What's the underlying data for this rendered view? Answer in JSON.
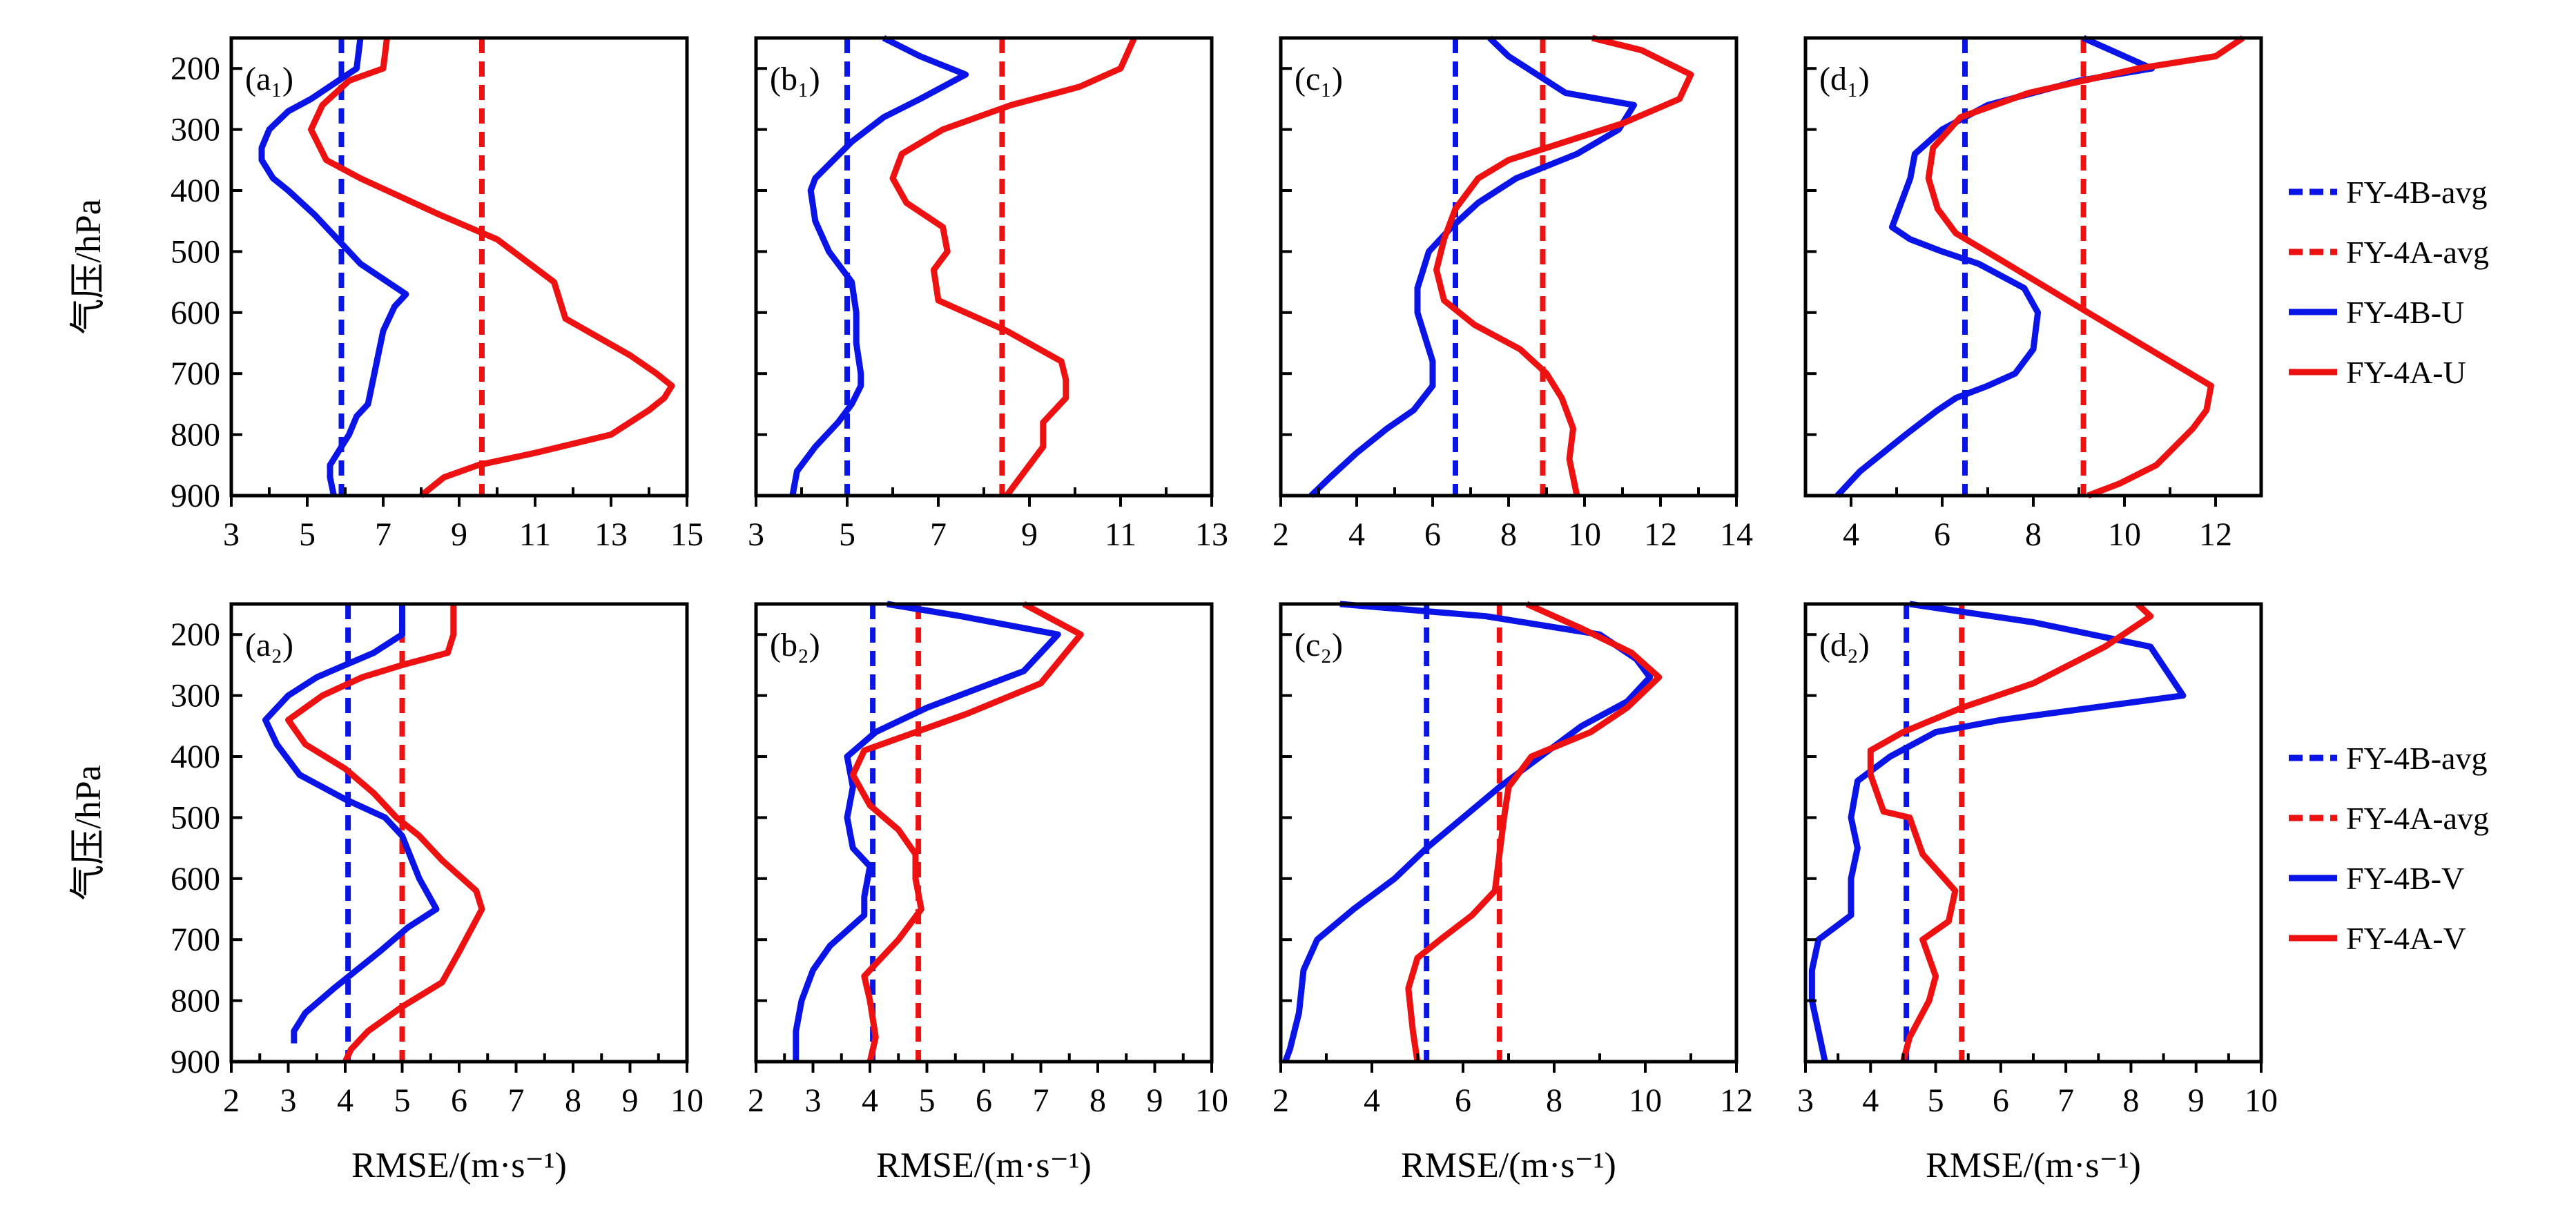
{
  "colors": {
    "fy4b": "#0a14e6",
    "fy4a": "#ee1111"
  },
  "y_axis_label": "气压/hPa",
  "x_axis_label": "RMSE/(m·s⁻¹)",
  "chart_data": [
    {
      "type": "line",
      "panel": "(a₁)",
      "component": "U",
      "ylim": [
        150,
        900
      ],
      "y_ticks": [
        200,
        300,
        400,
        500,
        600,
        700,
        800,
        900
      ],
      "xlim": [
        3,
        15
      ],
      "x_ticks": [
        3,
        5,
        7,
        9,
        11,
        13,
        15
      ],
      "series": [
        {
          "name": "FY-4B-avg",
          "dashed": true,
          "x": [
            5.9,
            5.9
          ],
          "y": [
            150,
            900
          ]
        },
        {
          "name": "FY-4A-avg",
          "dashed": true,
          "x": [
            9.6,
            9.6
          ],
          "y": [
            150,
            900
          ]
        },
        {
          "name": "FY-4B-U",
          "x": [
            6.4,
            6.3,
            5.1,
            4.5,
            4.0,
            3.8,
            3.8,
            4.1,
            4.5,
            5.2,
            5.8,
            6.4,
            7.6,
            7.3,
            7.0,
            6.8,
            6.6,
            6.3,
            6.1,
            5.8,
            5.6,
            5.6,
            5.7
          ],
          "y": [
            150,
            200,
            250,
            270,
            300,
            330,
            350,
            380,
            400,
            440,
            480,
            520,
            570,
            590,
            630,
            690,
            750,
            770,
            800,
            830,
            850,
            870,
            900
          ]
        },
        {
          "name": "FY-4A-U",
          "x": [
            7.1,
            7.0,
            6.1,
            5.4,
            5.1,
            5.5,
            6.4,
            8.5,
            10.0,
            11.5,
            11.8,
            13.5,
            14.2,
            14.6,
            14.4,
            14.0,
            13.0,
            11.0,
            9.5,
            8.6,
            8.0
          ],
          "y": [
            150,
            200,
            220,
            260,
            300,
            350,
            380,
            440,
            480,
            550,
            610,
            670,
            700,
            720,
            740,
            760,
            800,
            830,
            850,
            870,
            900
          ]
        }
      ]
    },
    {
      "type": "line",
      "panel": "(b₁)",
      "component": "U",
      "ylim": [
        150,
        900
      ],
      "y_ticks": [
        200,
        300,
        400,
        500,
        600,
        700,
        800,
        900
      ],
      "xlim": [
        3,
        13
      ],
      "x_ticks": [
        3,
        5,
        7,
        9,
        11,
        13
      ],
      "series": [
        {
          "name": "FY-4B-avg",
          "dashed": true,
          "x": [
            5.0,
            5.0
          ],
          "y": [
            150,
            900
          ]
        },
        {
          "name": "FY-4A-avg",
          "dashed": true,
          "x": [
            8.4,
            8.4
          ],
          "y": [
            150,
            900
          ]
        },
        {
          "name": "FY-4B-U",
          "x": [
            5.8,
            6.6,
            7.6,
            6.6,
            5.8,
            5.1,
            4.3,
            4.2,
            4.3,
            4.6,
            5.1,
            5.2,
            5.2,
            5.3,
            5.3,
            5.1,
            4.8,
            4.3,
            3.9,
            3.8
          ],
          "y": [
            150,
            180,
            210,
            250,
            280,
            320,
            380,
            400,
            450,
            500,
            550,
            600,
            650,
            700,
            720,
            750,
            780,
            820,
            860,
            900
          ]
        },
        {
          "name": "FY-4A-U",
          "x": [
            11.3,
            11.0,
            10.1,
            8.6,
            7.1,
            6.2,
            6.0,
            6.3,
            7.1,
            7.2,
            6.9,
            7.0,
            8.5,
            9.7,
            9.8,
            9.8,
            9.3,
            9.3,
            8.9,
            8.5
          ],
          "y": [
            150,
            200,
            230,
            260,
            300,
            340,
            380,
            420,
            460,
            500,
            530,
            580,
            630,
            680,
            710,
            740,
            780,
            820,
            860,
            900
          ]
        }
      ]
    },
    {
      "type": "line",
      "panel": "(c₁)",
      "component": "U",
      "ylim": [
        150,
        900
      ],
      "y_ticks": [
        200,
        300,
        400,
        500,
        600,
        700,
        800,
        900
      ],
      "xlim": [
        2,
        14
      ],
      "x_ticks": [
        2,
        4,
        6,
        8,
        10,
        12,
        14
      ],
      "series": [
        {
          "name": "FY-4B-avg",
          "dashed": true,
          "x": [
            6.6,
            6.6
          ],
          "y": [
            150,
            900
          ]
        },
        {
          "name": "FY-4A-avg",
          "dashed": true,
          "x": [
            8.9,
            8.9
          ],
          "y": [
            150,
            900
          ]
        },
        {
          "name": "FY-4B-U",
          "x": [
            7.5,
            8.0,
            9.5,
            11.3,
            10.9,
            9.8,
            8.2,
            7.2,
            6.5,
            5.9,
            5.6,
            5.6,
            5.8,
            6.0,
            6.0,
            5.5,
            4.8,
            4.0,
            3.3,
            2.8
          ],
          "y": [
            150,
            180,
            240,
            260,
            300,
            340,
            380,
            420,
            460,
            500,
            560,
            600,
            640,
            680,
            720,
            760,
            790,
            830,
            870,
            900
          ]
        },
        {
          "name": "FY-4A-U",
          "x": [
            10.2,
            11.5,
            12.8,
            12.5,
            11.0,
            9.5,
            8.0,
            7.2,
            6.6,
            6.3,
            6.1,
            6.3,
            7.1,
            8.3,
            9.0,
            9.4,
            9.7,
            9.6,
            9.8
          ],
          "y": [
            150,
            170,
            210,
            250,
            290,
            320,
            350,
            380,
            430,
            480,
            530,
            580,
            620,
            660,
            700,
            740,
            790,
            840,
            900
          ]
        }
      ]
    },
    {
      "type": "line",
      "panel": "(d₁)",
      "component": "U",
      "ylim": [
        150,
        900
      ],
      "y_ticks": [
        200,
        300,
        400,
        500,
        600,
        700,
        800,
        900
      ],
      "xlim": [
        3,
        13
      ],
      "x_ticks": [
        4,
        6,
        8,
        10,
        12
      ],
      "series": [
        {
          "name": "FY-4B-avg",
          "dashed": true,
          "x": [
            6.5,
            6.5
          ],
          "y": [
            150,
            900
          ]
        },
        {
          "name": "FY-4A-avg",
          "dashed": true,
          "x": [
            9.1,
            9.1
          ],
          "y": [
            150,
            900
          ]
        },
        {
          "name": "FY-4B-U",
          "x": [
            9.1,
            10.6,
            9.0,
            7.0,
            6.0,
            5.4,
            5.3,
            5.1,
            4.9,
            5.3,
            6.0,
            6.8,
            7.8,
            8.1,
            8.0,
            7.6,
            7.0,
            6.3,
            5.9,
            5.2,
            4.7,
            4.2,
            3.7
          ],
          "y": [
            150,
            200,
            220,
            260,
            300,
            340,
            380,
            420,
            460,
            480,
            500,
            520,
            560,
            600,
            660,
            700,
            720,
            740,
            760,
            800,
            830,
            860,
            900
          ]
        },
        {
          "name": "FY-4A-U",
          "x": [
            12.6,
            12.0,
            10.3,
            7.9,
            6.4,
            5.8,
            5.7,
            5.9,
            6.3,
            7.2,
            9.2,
            11.0,
            11.9,
            11.8,
            11.5,
            11.1,
            10.7,
            9.9,
            9.2
          ],
          "y": [
            150,
            180,
            200,
            240,
            280,
            330,
            380,
            430,
            470,
            510,
            600,
            680,
            720,
            760,
            790,
            820,
            850,
            880,
            900
          ]
        }
      ]
    },
    {
      "type": "line",
      "panel": "(a₂)",
      "component": "V",
      "ylim": [
        150,
        900
      ],
      "y_ticks": [
        200,
        300,
        400,
        500,
        600,
        700,
        800,
        900
      ],
      "xlim": [
        2,
        10
      ],
      "x_ticks": [
        2,
        3,
        4,
        5,
        6,
        7,
        8,
        9,
        10
      ],
      "series": [
        {
          "name": "FY-4B-avg",
          "dashed": true,
          "x": [
            4.05,
            4.05
          ],
          "y": [
            150,
            900
          ]
        },
        {
          "name": "FY-4A-avg",
          "dashed": true,
          "x": [
            5.0,
            5.0
          ],
          "y": [
            150,
            900
          ]
        },
        {
          "name": "FY-4B-V",
          "x": [
            5.0,
            5.0,
            4.5,
            4.0,
            3.5,
            3.0,
            2.6,
            2.8,
            3.2,
            4.0,
            4.7,
            5.0,
            5.3,
            5.6,
            5.1,
            4.6,
            4.2,
            3.8,
            3.3,
            3.1,
            3.1
          ],
          "y": [
            150,
            200,
            230,
            250,
            270,
            300,
            340,
            380,
            430,
            470,
            500,
            530,
            600,
            650,
            680,
            720,
            750,
            780,
            820,
            850,
            870
          ]
        },
        {
          "name": "FY-4A-V",
          "x": [
            5.9,
            5.9,
            5.8,
            5.0,
            4.3,
            3.6,
            3.0,
            3.3,
            4.0,
            4.5,
            4.9,
            5.3,
            5.7,
            6.3,
            6.4,
            6.0,
            5.7,
            5.0,
            4.4,
            4.1,
            4.0
          ],
          "y": [
            150,
            200,
            230,
            250,
            270,
            300,
            340,
            380,
            420,
            460,
            500,
            530,
            570,
            620,
            650,
            720,
            770,
            810,
            850,
            880,
            900
          ]
        }
      ]
    },
    {
      "type": "line",
      "panel": "(b₂)",
      "component": "V",
      "ylim": [
        150,
        900
      ],
      "y_ticks": [
        200,
        300,
        400,
        500,
        600,
        700,
        800,
        900
      ],
      "xlim": [
        2,
        10
      ],
      "x_ticks": [
        2,
        3,
        4,
        5,
        6,
        7,
        8,
        9,
        10
      ],
      "series": [
        {
          "name": "FY-4B-avg",
          "dashed": true,
          "x": [
            4.05,
            4.05
          ],
          "y": [
            150,
            900
          ]
        },
        {
          "name": "FY-4A-avg",
          "dashed": true,
          "x": [
            4.85,
            4.85
          ],
          "y": [
            150,
            900
          ]
        },
        {
          "name": "FY-4B-V",
          "x": [
            4.3,
            5.6,
            7.3,
            6.7,
            5.0,
            4.1,
            3.6,
            3.7,
            3.6,
            3.7,
            4.0,
            3.9,
            3.9,
            3.3,
            3.0,
            2.8,
            2.7,
            2.7
          ],
          "y": [
            150,
            170,
            200,
            260,
            320,
            360,
            400,
            450,
            500,
            550,
            580,
            630,
            660,
            710,
            750,
            800,
            850,
            900
          ]
        },
        {
          "name": "FY-4A-V",
          "x": [
            6.7,
            7.3,
            7.7,
            7.0,
            5.7,
            4.5,
            3.9,
            3.7,
            4.0,
            4.5,
            4.8,
            4.8,
            4.9,
            4.5,
            3.9,
            4.0,
            4.1,
            4.0
          ],
          "y": [
            150,
            180,
            200,
            280,
            330,
            370,
            390,
            430,
            480,
            520,
            560,
            600,
            650,
            700,
            760,
            800,
            860,
            900
          ]
        }
      ]
    },
    {
      "type": "line",
      "panel": "(c₂)",
      "component": "V",
      "ylim": [
        150,
        900
      ],
      "y_ticks": [
        200,
        300,
        400,
        500,
        600,
        700,
        800,
        900
      ],
      "xlim": [
        2,
        12
      ],
      "x_ticks": [
        2,
        4,
        6,
        8,
        10,
        12
      ],
      "series": [
        {
          "name": "FY-4B-avg",
          "dashed": true,
          "x": [
            5.2,
            5.2
          ],
          "y": [
            150,
            900
          ]
        },
        {
          "name": "FY-4A-avg",
          "dashed": true,
          "x": [
            6.8,
            6.8
          ],
          "y": [
            150,
            900
          ]
        },
        {
          "name": "FY-4B-V",
          "x": [
            3.3,
            6.5,
            9.0,
            9.8,
            10.1,
            9.6,
            8.6,
            7.7,
            6.8,
            6.0,
            5.2,
            4.5,
            3.6,
            2.8,
            2.5,
            2.4,
            2.2,
            2.1
          ],
          "y": [
            150,
            170,
            200,
            240,
            270,
            310,
            350,
            400,
            450,
            500,
            550,
            600,
            650,
            700,
            750,
            820,
            880,
            900
          ]
        },
        {
          "name": "FY-4A-V",
          "x": [
            7.4,
            8.6,
            9.7,
            10.3,
            9.6,
            8.8,
            7.5,
            7.0,
            6.9,
            6.8,
            6.7,
            6.2,
            5.5,
            5.0,
            4.8,
            4.9,
            5.0
          ],
          "y": [
            150,
            190,
            230,
            270,
            320,
            360,
            400,
            450,
            500,
            560,
            620,
            660,
            700,
            730,
            780,
            850,
            900
          ]
        }
      ]
    },
    {
      "type": "line",
      "panel": "(d₂)",
      "component": "V",
      "ylim": [
        150,
        900
      ],
      "y_ticks": [
        200,
        300,
        400,
        500,
        600,
        700,
        800,
        900
      ],
      "xlim": [
        3,
        10
      ],
      "x_ticks": [
        3,
        4,
        5,
        6,
        7,
        8,
        9,
        10
      ],
      "series": [
        {
          "name": "FY-4B-avg",
          "dashed": true,
          "x": [
            4.55,
            4.55
          ],
          "y": [
            150,
            900
          ]
        },
        {
          "name": "FY-4A-avg",
          "dashed": true,
          "x": [
            5.4,
            5.4
          ],
          "y": [
            150,
            900
          ]
        },
        {
          "name": "FY-4B-V",
          "x": [
            4.6,
            6.5,
            8.3,
            8.8,
            7.4,
            6.0,
            5.0,
            4.3,
            3.8,
            3.7,
            3.8,
            3.7,
            3.7,
            3.2,
            3.1,
            3.1,
            3.2,
            3.3
          ],
          "y": [
            150,
            180,
            220,
            300,
            320,
            340,
            360,
            400,
            440,
            500,
            550,
            600,
            660,
            700,
            750,
            800,
            850,
            900
          ]
        },
        {
          "name": "FY-4A-V",
          "x": [
            8.1,
            8.3,
            7.6,
            6.5,
            5.4,
            4.5,
            4.0,
            4.0,
            4.2,
            4.6,
            4.8,
            5.3,
            5.2,
            4.8,
            5.0,
            4.9,
            4.6,
            4.5
          ],
          "y": [
            150,
            170,
            220,
            280,
            320,
            360,
            390,
            430,
            490,
            500,
            560,
            620,
            670,
            700,
            760,
            800,
            860,
            900
          ]
        }
      ]
    }
  ],
  "legends": [
    [
      "FY-4B-avg",
      "FY-4A-avg",
      "FY-4B-U",
      "FY-4A-U"
    ],
    [
      "FY-4B-avg",
      "FY-4A-avg",
      "FY-4B-V",
      "FY-4A-V"
    ]
  ]
}
